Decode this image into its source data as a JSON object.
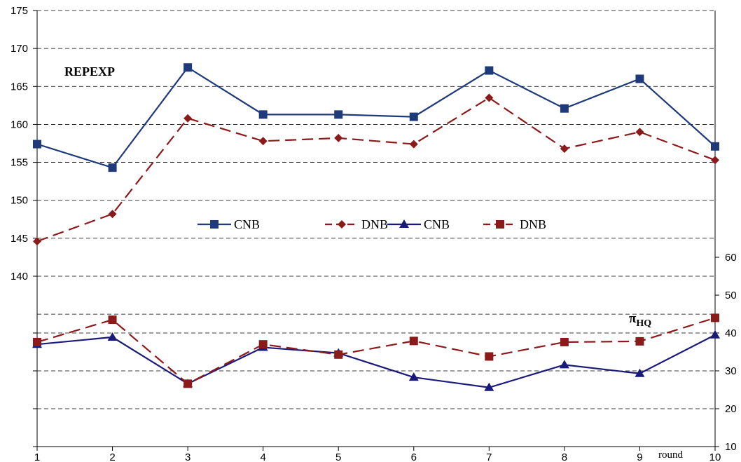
{
  "chart_data": {
    "type": "line",
    "x": [
      1,
      2,
      3,
      4,
      5,
      6,
      7,
      8,
      9,
      10
    ],
    "xlabel": "round",
    "grid": true,
    "legend_position": "center",
    "left_axis": {
      "label": "REPEXP",
      "ylim": [
        135,
        175
      ],
      "ticks": [
        140,
        145,
        150,
        155,
        160,
        165,
        170,
        175
      ]
    },
    "right_axis": {
      "label_main": "π",
      "label_sub": "HQ",
      "ylim": [
        10,
        70
      ],
      "ticks": [
        10,
        20,
        30,
        40,
        50,
        60
      ]
    },
    "series": [
      {
        "name": "CNB",
        "axis": "left",
        "color": "#1F3A7A",
        "dash": "solid",
        "marker": "square",
        "values": [
          157.4,
          154.3,
          167.5,
          161.3,
          161.3,
          161.0,
          167.1,
          162.1,
          166.0,
          157.1
        ]
      },
      {
        "name": "DNB",
        "axis": "left",
        "color": "#8B1A1A",
        "dash": "dashed",
        "marker": "diamond",
        "values": [
          144.6,
          148.2,
          160.8,
          157.8,
          158.2,
          157.4,
          163.5,
          156.8,
          159.0,
          155.3
        ]
      },
      {
        "name": "CNB",
        "axis": "right",
        "color": "#1A1A7A",
        "dash": "solid",
        "marker": "triangle",
        "values": [
          37.0,
          38.9,
          26.6,
          36.2,
          34.7,
          28.3,
          25.6,
          31.6,
          29.3,
          39.5
        ]
      },
      {
        "name": "DNB",
        "axis": "right",
        "color": "#8B1A1A",
        "dash": "dashed",
        "marker": "square",
        "values": [
          37.6,
          43.5,
          26.6,
          37.0,
          34.3,
          37.9,
          33.8,
          37.6,
          37.8,
          44.0
        ]
      }
    ]
  }
}
